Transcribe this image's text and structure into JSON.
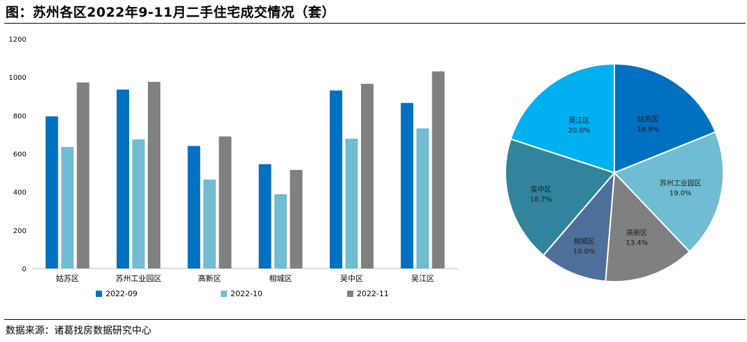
{
  "title": "图：苏州各区2022年9-11月二手住宅成交情况（套）",
  "source": "数据来源：诸葛找房数据研究中心",
  "chart_data": [
    {
      "type": "bar",
      "categories": [
        "姑苏区",
        "苏州工业园区",
        "高新区",
        "相城区",
        "吴中区",
        "吴江区"
      ],
      "series": [
        {
          "name": "2022-09",
          "color": "#0070C0",
          "values": [
            795,
            935,
            640,
            545,
            930,
            865
          ]
        },
        {
          "name": "2022-10",
          "color": "#70BCD3",
          "values": [
            635,
            675,
            465,
            388,
            678,
            732
          ]
        },
        {
          "name": "2022-11",
          "color": "#808080",
          "values": [
            972,
            975,
            690,
            515,
            965,
            1030
          ]
        }
      ],
      "yticks": [
        "0",
        "200",
        "400",
        "600",
        "800",
        "1000",
        "1200"
      ],
      "ylim": [
        0,
        1200
      ],
      "legend_position": "bottom"
    },
    {
      "type": "pie",
      "slices": [
        {
          "name": "姑苏区",
          "value": 18.9,
          "label": "18.9%",
          "color": "#0070C0"
        },
        {
          "name": "苏州工业园区",
          "value": 19.0,
          "label": "19.0%",
          "color": "#70BCD3"
        },
        {
          "name": "高新区",
          "value": 13.4,
          "label": "13.4%",
          "color": "#808080"
        },
        {
          "name": "相城区",
          "value": 10.0,
          "label": "10.0%",
          "color": "#4E6F9A"
        },
        {
          "name": "吴中区",
          "value": 18.7,
          "label": "18.7%",
          "color": "#31849B"
        },
        {
          "name": "吴江区",
          "value": 20.0,
          "label": "20.0%",
          "color": "#00B0F0"
        }
      ]
    }
  ]
}
